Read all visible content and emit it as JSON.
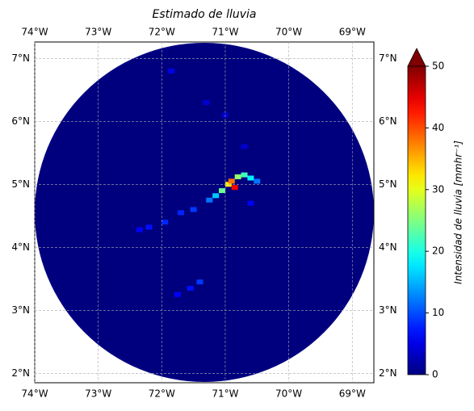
{
  "chart_data": {
    "type": "map",
    "title": "Estimado de lluvia",
    "xlim": [
      -74,
      -68.66
    ],
    "ylim": [
      1.85,
      7.26
    ],
    "xticks": [
      {
        "value": -74,
        "label": "74°W"
      },
      {
        "value": -73,
        "label": "73°W"
      },
      {
        "value": -72,
        "label": "72°W"
      },
      {
        "value": -71,
        "label": "71°W"
      },
      {
        "value": -70,
        "label": "70°W"
      },
      {
        "value": -69,
        "label": "69°W"
      }
    ],
    "yticks": [
      {
        "value": 2,
        "label": "2°N"
      },
      {
        "value": 3,
        "label": "3°N"
      },
      {
        "value": 4,
        "label": "4°N"
      },
      {
        "value": 5,
        "label": "5°N"
      },
      {
        "value": 6,
        "label": "6°N"
      },
      {
        "value": 7,
        "label": "7°N"
      }
    ],
    "grid": true,
    "colorbar": {
      "label": "Intensidad de lluvia [mmhr⁻¹]",
      "clim": [
        0,
        50
      ],
      "ticks": [
        0,
        10,
        20,
        30,
        40,
        50
      ],
      "extend": "max"
    },
    "rain": {
      "lon": [
        -70.95,
        -70.9,
        -70.8,
        -70.7,
        -70.6,
        -70.5,
        -71.05,
        -71.15,
        -71.25,
        -71.5,
        -71.7,
        -71.95,
        -72.2,
        -72.35,
        -71.4,
        -71.55,
        -71.75,
        -71.85,
        -71.0,
        -70.7,
        -70.6,
        -71.3,
        -70.85
      ],
      "lat": [
        5.0,
        5.05,
        5.12,
        5.15,
        5.1,
        5.05,
        4.9,
        4.82,
        4.75,
        4.6,
        4.55,
        4.4,
        4.32,
        4.28,
        3.45,
        3.35,
        3.25,
        6.8,
        6.1,
        5.6,
        4.7,
        6.3,
        4.95
      ],
      "values": [
        32,
        38,
        26,
        22,
        18,
        12,
        24,
        16,
        12,
        9,
        8,
        8,
        7,
        6,
        9,
        7,
        6,
        5,
        4,
        4,
        6,
        4,
        44
      ]
    }
  }
}
